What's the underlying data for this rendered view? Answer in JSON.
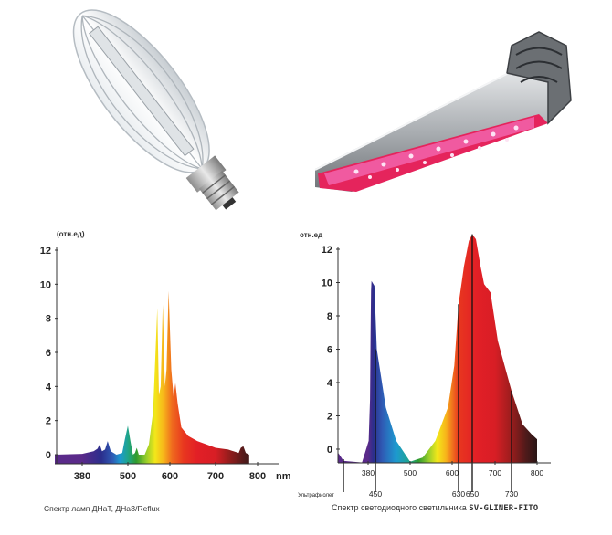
{
  "photos": {
    "left": "hps-lamp-bulb-photo",
    "right": "led-grow-light-fixture-photo"
  },
  "chart_data": [
    {
      "type": "area",
      "title": "Спектр ламп ДНаТ, ДНаЗ/Reflux",
      "ylabel": "(отн.ед)",
      "xunit": "nm",
      "x_ticks": [
        380,
        500,
        600,
        700,
        800
      ],
      "y_ticks": [
        0,
        2,
        4,
        6,
        8,
        10,
        12
      ],
      "ylim": [
        -0.5,
        13
      ],
      "grid": false,
      "points": [
        [
          310,
          0
        ],
        [
          380,
          0.05
        ],
        [
          410,
          0.2
        ],
        [
          420,
          0.35
        ],
        [
          426,
          0.6
        ],
        [
          432,
          0.2
        ],
        [
          440,
          0.3
        ],
        [
          447,
          0.8
        ],
        [
          455,
          0.2
        ],
        [
          470,
          0
        ],
        [
          485,
          0.1
        ],
        [
          492,
          0.9
        ],
        [
          500,
          1.7
        ],
        [
          506,
          0.8
        ],
        [
          512,
          0
        ],
        [
          517,
          0.1
        ],
        [
          521,
          0.4
        ],
        [
          526,
          0
        ],
        [
          540,
          0
        ],
        [
          550,
          0.6
        ],
        [
          560,
          2.5
        ],
        [
          570,
          8.6
        ],
        [
          574,
          3.5
        ],
        [
          578,
          4
        ],
        [
          583,
          8.8
        ],
        [
          588,
          4
        ],
        [
          592,
          5
        ],
        [
          597,
          9.6
        ],
        [
          603,
          5
        ],
        [
          608,
          3.4
        ],
        [
          612,
          4.2
        ],
        [
          617,
          3
        ],
        [
          625,
          1.6
        ],
        [
          640,
          1.1
        ],
        [
          660,
          0.8
        ],
        [
          680,
          0.6
        ],
        [
          700,
          0.4
        ],
        [
          730,
          0.3
        ],
        [
          755,
          0.1
        ],
        [
          760,
          0.4
        ],
        [
          766,
          0.5
        ],
        [
          772,
          0.1
        ],
        [
          780,
          0
        ]
      ]
    },
    {
      "type": "area",
      "title_prefix": "Спектр светодиодного светильника ",
      "title_product": "SV-GLINER-FITO",
      "ylabel": "отн.ед",
      "x_ticks": [
        380,
        500,
        600,
        700,
        800
      ],
      "marker_lines": [
        {
          "label": "Ультрафиолет"
        },
        {
          "label": "450"
        },
        {
          "label": "630"
        },
        {
          "label": "650"
        },
        {
          "label": "730"
        }
      ],
      "y_ticks": [
        0,
        2,
        4,
        6,
        8,
        10,
        12
      ],
      "ylim": [
        -0.8,
        13
      ],
      "grid": false,
      "points": [
        [
          280,
          -0.2
        ],
        [
          300,
          -0.7
        ],
        [
          360,
          -0.8
        ],
        [
          385,
          0.5
        ],
        [
          398,
          3
        ],
        [
          404,
          7
        ],
        [
          408,
          9.5
        ],
        [
          412,
          10.1
        ],
        [
          440,
          9.8
        ],
        [
          452,
          6
        ],
        [
          465,
          2.5
        ],
        [
          480,
          0.5
        ],
        [
          500,
          -0.75
        ],
        [
          530,
          -0.5
        ],
        [
          560,
          0.5
        ],
        [
          590,
          2.5
        ],
        [
          610,
          5
        ],
        [
          630,
          8.7
        ],
        [
          638,
          11
        ],
        [
          645,
          12.5
        ],
        [
          650,
          12.9
        ],
        [
          658,
          12.6
        ],
        [
          668,
          11
        ],
        [
          676,
          9.9
        ],
        [
          690,
          9.4
        ],
        [
          705,
          6.5
        ],
        [
          730,
          3.5
        ],
        [
          760,
          1.5
        ],
        [
          785,
          0.9
        ],
        [
          800,
          0.6
        ]
      ]
    }
  ]
}
